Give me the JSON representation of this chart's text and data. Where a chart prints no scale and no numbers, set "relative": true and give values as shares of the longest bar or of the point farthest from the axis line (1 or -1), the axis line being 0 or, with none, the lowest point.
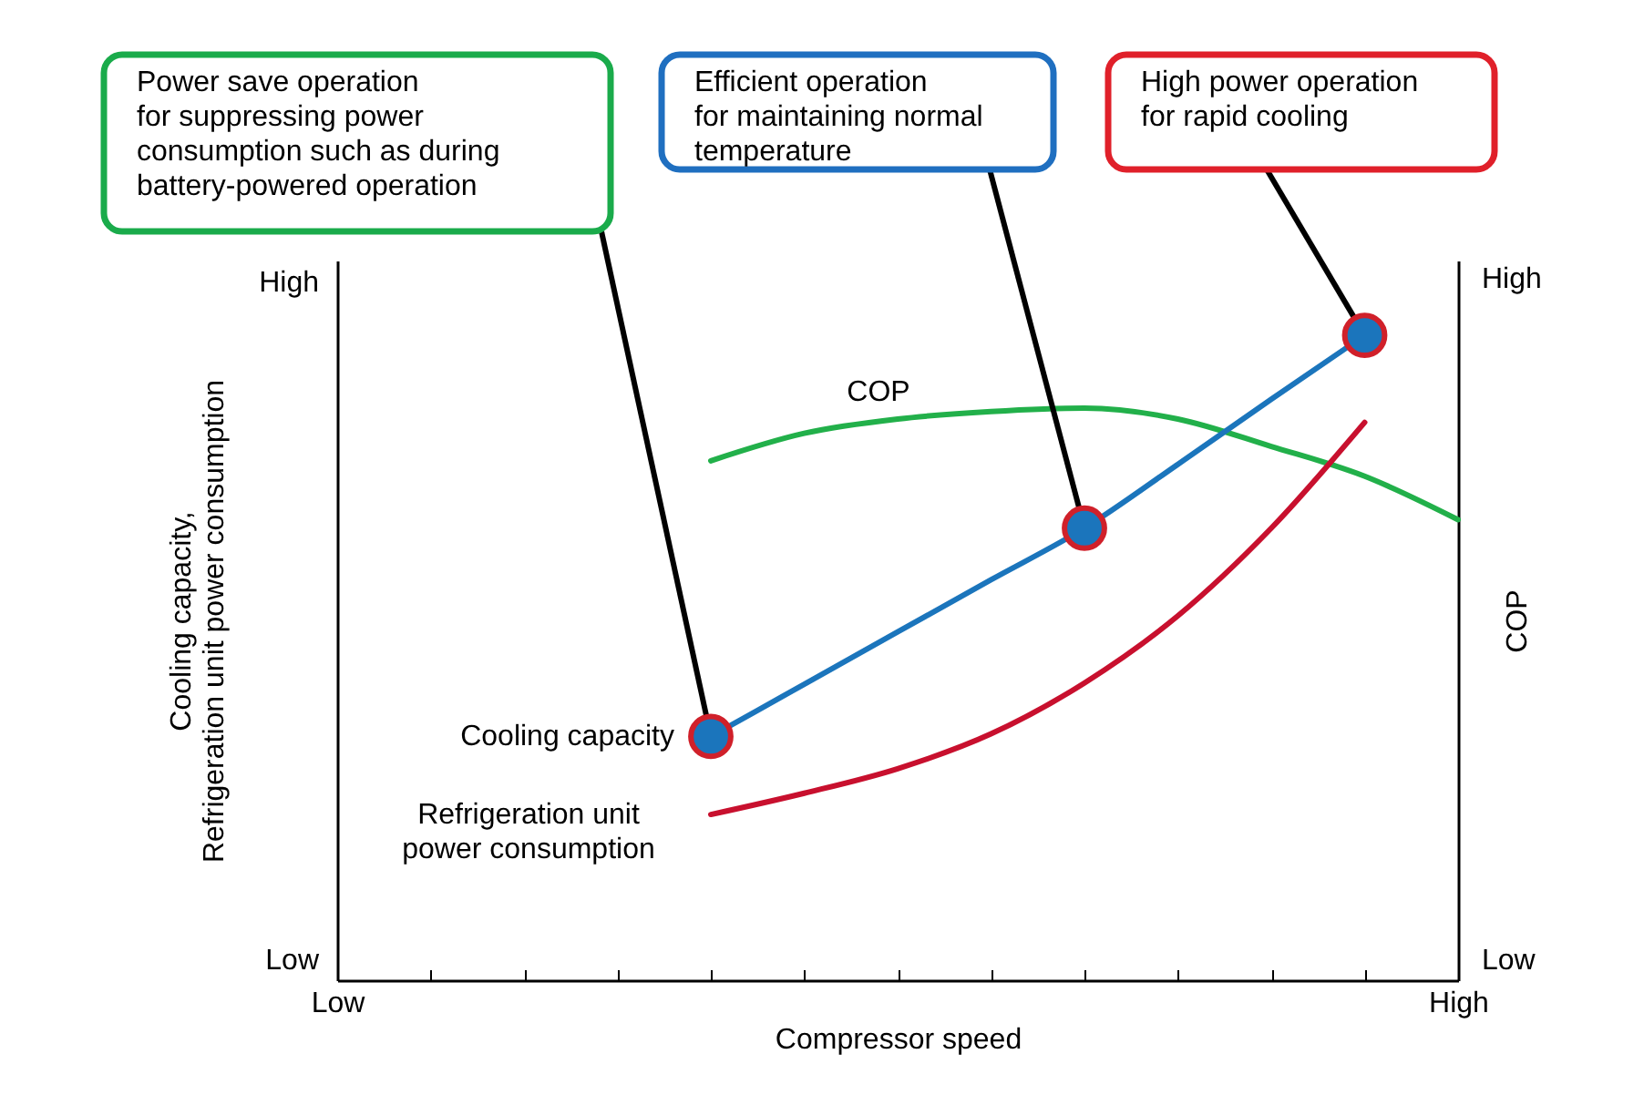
{
  "chart_data": {
    "type": "line",
    "relative": true,
    "xlabel": "Compressor speed",
    "ylabel": "Cooling capacity,\nRefrigeration unit power consumption",
    "y2label": "COP",
    "grid": false,
    "categories": [
      "Low",
      null,
      null,
      null,
      null,
      null,
      null,
      null,
      null,
      null,
      null,
      null,
      "High"
    ],
    "series": [
      {
        "name": "COP",
        "color": "#22b04a",
        "axis": "y2",
        "values": [
          null,
          null,
          null,
          null,
          0.908,
          0.956,
          0.981,
          0.994,
          1,
          0.981,
          0.933,
          0.881,
          0.805
        ]
      },
      {
        "name": "Cooling capacity",
        "color": "#1b75bc",
        "values": [
          null,
          null,
          null,
          null,
          0.378,
          0.459,
          0.54,
          0.621,
          0.701,
          0.8,
          0.901,
          1,
          null
        ]
      },
      {
        "name": "Refrigeration unit\npower consumption",
        "color": "#c8102e",
        "values": [
          null,
          null,
          null,
          null,
          0.257,
          0.29,
          0.328,
          0.382,
          0.461,
          0.565,
          0.701,
          0.865,
          null
        ]
      },
      {
        "type": "scatter",
        "color": "#1b75bc",
        "marker": "circle",
        "values": [
          null,
          null,
          null,
          null,
          0.378,
          null,
          null,
          null,
          0.701,
          null,
          null,
          1,
          null
        ]
      }
    ],
    "annotations": [
      "Power save operation\nfor suppressing power\nconsumption such as during\nbattery-powered operation",
      "Efficient operation\nfor maintaining normal\ntemperature",
      "High power operation\nfor rapid cooling",
      "High",
      "Low",
      "High",
      "Low"
    ]
  }
}
